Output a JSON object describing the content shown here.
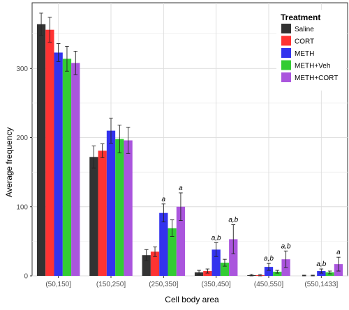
{
  "chart_data": {
    "type": "bar",
    "title": "",
    "xlabel": "Cell body area",
    "ylabel": "Average frequency",
    "categories": [
      "(50,150]",
      "(150,250]",
      "(250,350]",
      "(350,450]",
      "(450,550]",
      "(550,1433]"
    ],
    "ylim": [
      0,
      395
    ],
    "yticks": [
      0,
      100,
      200,
      300
    ],
    "grid": true,
    "legend_position": "top-right",
    "legend_title": "Treatment",
    "series": [
      {
        "name": "Saline",
        "color": "#333333",
        "values": [
          364,
          172,
          30,
          5,
          1,
          0
        ],
        "errors": [
          16,
          16,
          8,
          3,
          1,
          1
        ],
        "annotations": [
          "",
          "",
          "",
          "",
          "",
          ""
        ]
      },
      {
        "name": "CORT",
        "color": "#ff3333",
        "values": [
          356,
          181,
          35,
          7,
          1,
          0
        ],
        "errors": [
          18,
          10,
          7,
          3,
          1,
          1
        ],
        "annotations": [
          "",
          "",
          "",
          "",
          "",
          ""
        ]
      },
      {
        "name": "METH",
        "color": "#3333ee",
        "values": [
          323,
          210,
          91,
          38,
          13,
          7
        ],
        "errors": [
          13,
          18,
          13,
          10,
          5,
          3
        ],
        "annotations": [
          "",
          "",
          "a",
          "a,b",
          "a,b",
          "a,b"
        ]
      },
      {
        "name": "METH+Veh",
        "color": "#33cc33",
        "values": [
          314,
          198,
          69,
          19,
          6,
          5
        ],
        "errors": [
          18,
          20,
          12,
          5,
          2,
          2
        ],
        "annotations": [
          "",
          "",
          "",
          "",
          "",
          ""
        ]
      },
      {
        "name": "METH+CORT",
        "color": "#aa55dd",
        "values": [
          308,
          196,
          100,
          53,
          24,
          17
        ],
        "errors": [
          17,
          19,
          20,
          21,
          12,
          10
        ],
        "annotations": [
          "",
          "",
          "a",
          "a,b",
          "a,b",
          "a"
        ]
      }
    ]
  }
}
